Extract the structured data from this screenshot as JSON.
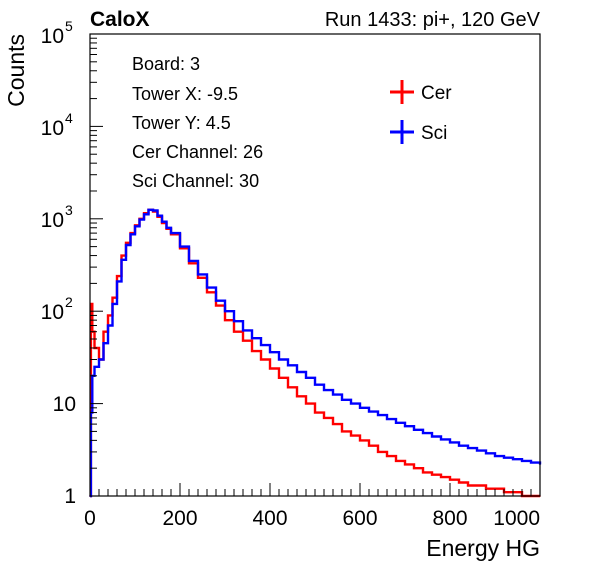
{
  "header": {
    "experiment": "CaloX",
    "run_info": "Run 1433: pi+, 120 GeV"
  },
  "info_box": {
    "lines": [
      "Board: 3",
      "Tower X: -9.5",
      "Tower Y: 4.5",
      "Cer Channel: 26",
      "Sci Channel: 30"
    ]
  },
  "colors": {
    "cer": "#ff0000",
    "sci": "#0000ff",
    "axis": "#000000"
  },
  "chart_data": {
    "type": "line",
    "xlabel": "Energy HG",
    "ylabel": "Counts",
    "xlim": [
      0,
      1000
    ],
    "ylim": [
      1,
      100000
    ],
    "yscale": "log",
    "grid": false,
    "legend_position": "top-right",
    "x_ticks": [
      "0",
      "200",
      "400",
      "600",
      "800",
      "1000"
    ],
    "y_ticks": [
      {
        "base": "1",
        "exp": ""
      },
      {
        "base": "10",
        "exp": ""
      },
      {
        "base": "10",
        "exp": "2"
      },
      {
        "base": "10",
        "exp": "3"
      },
      {
        "base": "10",
        "exp": "4"
      },
      {
        "base": "10",
        "exp": "5"
      }
    ],
    "series": [
      {
        "name": "Cer",
        "color": "#ff0000",
        "x": [
          0,
          2,
          5,
          10,
          20,
          30,
          40,
          50,
          60,
          70,
          80,
          90,
          100,
          110,
          120,
          130,
          140,
          150,
          160,
          170,
          180,
          200,
          220,
          240,
          260,
          280,
          300,
          320,
          340,
          360,
          380,
          400,
          420,
          440,
          460,
          480,
          500,
          520,
          540,
          560,
          580,
          600,
          620,
          640,
          660,
          680,
          700,
          720,
          740,
          760,
          780,
          800,
          820,
          840,
          860,
          880,
          900,
          920,
          940,
          960,
          980,
          1000
        ],
        "y": [
          1,
          120,
          60,
          40,
          30,
          60,
          90,
          140,
          240,
          400,
          550,
          700,
          850,
          1000,
          1150,
          1250,
          1200,
          1050,
          900,
          780,
          680,
          480,
          330,
          230,
          160,
          115,
          80,
          60,
          48,
          37,
          30,
          24,
          19,
          15,
          12,
          10,
          8,
          7,
          6,
          5,
          4.5,
          4,
          3.5,
          3,
          2.7,
          2.4,
          2.2,
          2,
          1.8,
          1.7,
          1.6,
          1.5,
          1.4,
          1.3,
          1.3,
          1.2,
          1.2,
          1.1,
          1.1,
          1,
          1,
          1
        ]
      },
      {
        "name": "Sci",
        "color": "#0000ff",
        "x": [
          0,
          2,
          5,
          10,
          20,
          30,
          40,
          50,
          60,
          70,
          80,
          90,
          100,
          110,
          120,
          130,
          140,
          150,
          160,
          170,
          180,
          200,
          220,
          240,
          260,
          280,
          300,
          320,
          340,
          360,
          380,
          400,
          420,
          440,
          460,
          480,
          500,
          520,
          540,
          560,
          580,
          600,
          620,
          640,
          660,
          680,
          700,
          720,
          740,
          760,
          780,
          800,
          820,
          840,
          860,
          880,
          900,
          920,
          940,
          960,
          980,
          1000
        ],
        "y": [
          1,
          8,
          20,
          25,
          30,
          45,
          70,
          120,
          210,
          360,
          520,
          680,
          830,
          980,
          1120,
          1250,
          1230,
          1080,
          930,
          800,
          700,
          500,
          350,
          250,
          180,
          130,
          100,
          78,
          62,
          51,
          43,
          36,
          30,
          26,
          22,
          19,
          16,
          14,
          12.5,
          11,
          10,
          9,
          8.2,
          7.5,
          6.8,
          6.2,
          5.7,
          5.2,
          4.8,
          4.4,
          4.1,
          3.8,
          3.5,
          3.3,
          3.1,
          2.9,
          2.7,
          2.6,
          2.5,
          2.4,
          2.3,
          2.2
        ]
      }
    ]
  }
}
